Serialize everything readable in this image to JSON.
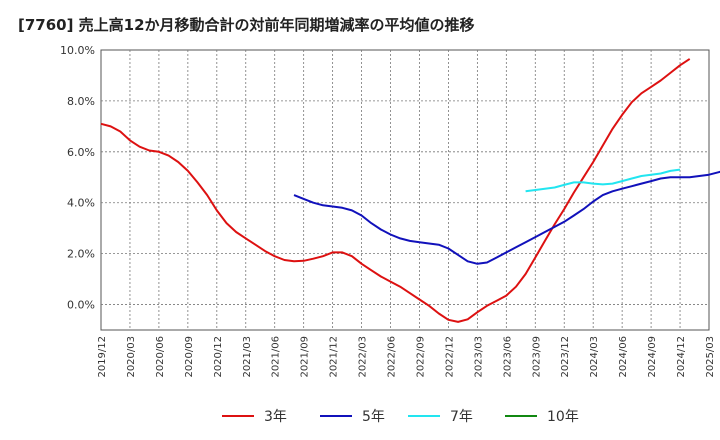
{
  "chart_data": {
    "type": "line",
    "title": "[7760]  売上高12か月移動合計の対前年同期増減率の平均値の推移",
    "ylim": [
      -1.0,
      10.0
    ],
    "y_ticks": [
      "10.0%",
      "8.0%",
      "6.0%",
      "4.0%",
      "2.0%",
      "0.0%"
    ],
    "y_tick_values": [
      10,
      8,
      6,
      4,
      2,
      0
    ],
    "x_ticks": [
      "2019/12",
      "2020/03",
      "2020/06",
      "2020/09",
      "2020/12",
      "2021/03",
      "2021/06",
      "2021/09",
      "2021/12",
      "2022/03",
      "2022/06",
      "2022/09",
      "2022/12",
      "2023/03",
      "2023/06",
      "2023/09",
      "2023/12",
      "2024/03",
      "2024/06",
      "2024/09",
      "2024/12",
      "2025/03"
    ],
    "grid": true,
    "legend_position": "bottom",
    "series": [
      {
        "name": "3年",
        "color": "#dd1111",
        "start_month": "2019/12",
        "values": [
          7.1,
          7.0,
          6.8,
          6.45,
          6.2,
          6.05,
          6.0,
          5.85,
          5.6,
          5.25,
          4.8,
          4.3,
          3.7,
          3.2,
          2.85,
          2.6,
          2.35,
          2.1,
          1.9,
          1.75,
          1.7,
          1.72,
          1.8,
          1.9,
          2.05,
          2.05,
          1.9,
          1.6,
          1.35,
          1.1,
          0.9,
          0.7,
          0.45,
          0.2,
          -0.05,
          -0.35,
          -0.6,
          -0.68,
          -0.58,
          -0.3,
          -0.05,
          0.15,
          0.35,
          0.7,
          1.2,
          1.85,
          2.5,
          3.15,
          3.75,
          4.4,
          5.0,
          5.6,
          6.25,
          6.9,
          7.45,
          7.95,
          8.3,
          8.55,
          8.8,
          9.1,
          9.4,
          9.65
        ]
      },
      {
        "name": "5年",
        "color": "#1111bb",
        "start_month": "2021/08",
        "values": [
          4.3,
          4.15,
          4.0,
          3.9,
          3.85,
          3.8,
          3.7,
          3.5,
          3.2,
          2.95,
          2.75,
          2.6,
          2.5,
          2.45,
          2.4,
          2.35,
          2.2,
          1.95,
          1.7,
          1.6,
          1.65,
          1.85,
          2.05,
          2.25,
          2.45,
          2.65,
          2.85,
          3.05,
          3.25,
          3.5,
          3.75,
          4.05,
          4.3,
          4.45,
          4.55,
          4.65,
          4.75,
          4.85,
          4.95,
          5.0,
          5.0,
          5.0,
          5.05,
          5.1,
          5.2,
          5.3
        ]
      },
      {
        "name": "7年",
        "color": "#22e5f0",
        "start_month": "2023/08",
        "values": [
          4.45,
          4.5,
          4.55,
          4.6,
          4.7,
          4.8,
          4.8,
          4.75,
          4.72,
          4.75,
          4.85,
          4.95,
          5.05,
          5.1,
          5.15,
          5.25,
          5.3
        ]
      },
      {
        "name": "10年",
        "color": "#118811",
        "start_month": "",
        "values": []
      }
    ]
  }
}
